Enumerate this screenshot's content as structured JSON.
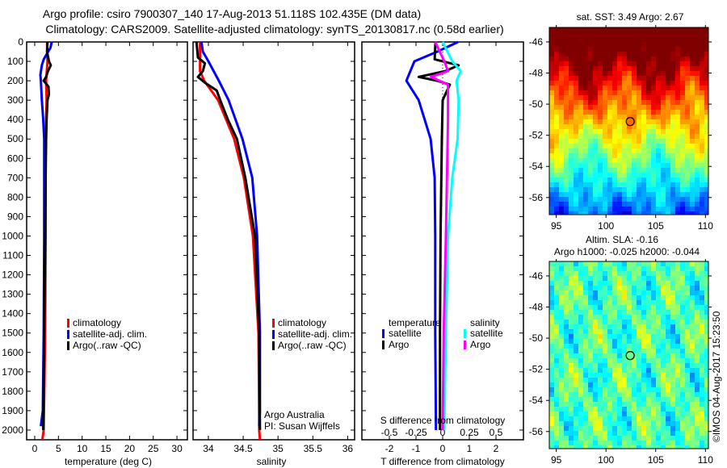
{
  "title": {
    "line1": "Argo profile: csiro 7900307_140 17-Aug-2013 51.118S 102.435E (DM data)",
    "line2": "Climatology: CARS2009. Satellite-adjusted climatology: synTS_20130817.nc (0.58d earlier)"
  },
  "colors": {
    "climatology": "#ff0000",
    "satellite": "#0000ff",
    "argo": "#000000",
    "s_satellite": "#00ffff",
    "s_argo": "#ff00ff"
  },
  "chart_data": [
    {
      "type": "line",
      "name": "temperature-profile",
      "xlabel": "temperature (deg C)",
      "ylabel": "",
      "xlim": [
        -1.7,
        32.2
      ],
      "ylim": [
        2050,
        0
      ],
      "xticks": [
        "0",
        "5",
        "10",
        "15",
        "20",
        "25",
        "30"
      ],
      "yticks": [
        "0",
        "100",
        "200",
        "300",
        "400",
        "500",
        "600",
        "700",
        "800",
        "900",
        "1000",
        "1100",
        "1200",
        "1300",
        "1400",
        "1500",
        "1600",
        "1700",
        "1800",
        "1900",
        "2000"
      ],
      "legend": [
        "climatology",
        "satellite-adj. clim.",
        "Argo(..raw -QC)"
      ],
      "series": [
        {
          "name": "climatology",
          "color": "#ff0000",
          "depth": [
            0,
            100,
            200,
            300,
            500,
            1000,
            1500,
            2000,
            2050
          ],
          "values": [
            2.6,
            2.7,
            2.4,
            2.5,
            2.3,
            2.3,
            2.2,
            1.9,
            1.6
          ]
        },
        {
          "name": "satellite-adj. clim.",
          "color": "#0000ff",
          "depth": [
            0,
            30,
            60,
            90,
            120,
            170,
            200,
            300,
            400,
            500,
            1000,
            1500,
            1900,
            1980
          ],
          "values": [
            3.6,
            3.3,
            2.6,
            1.9,
            1.5,
            1.2,
            1.3,
            1.5,
            1.8,
            2.0,
            2.0,
            1.9,
            1.7,
            1.3
          ]
        },
        {
          "name": "Argo(..raw -QC)",
          "color": "#000000",
          "depth": [
            0,
            50,
            100,
            120,
            150,
            180,
            200,
            230,
            270,
            300,
            400,
            500,
            700,
            1000,
            1500,
            2000
          ],
          "values": [
            2.7,
            2.6,
            3.0,
            3.4,
            2.8,
            2.4,
            1.9,
            2.9,
            3.0,
            2.7,
            2.5,
            2.4,
            2.3,
            2.2,
            2.0,
            1.8
          ]
        }
      ]
    },
    {
      "type": "line",
      "name": "salinity-profile",
      "xlabel": "salinity",
      "xlim": [
        33.78,
        36.1
      ],
      "ylim": [
        2050,
        0
      ],
      "xticks": [
        "34",
        "34.5",
        "35",
        "35.5",
        "36"
      ],
      "legend": [
        "climatology",
        "satellite-adj. clim.",
        "Argo(..raw -QC)"
      ],
      "annotation": [
        "Argo Australia",
        "PI: Susan Wijffels"
      ],
      "series": [
        {
          "name": "climatology",
          "color": "#ff0000",
          "depth": [
            0,
            150,
            200,
            300,
            500,
            700,
            1000,
            1500,
            2000,
            2050
          ],
          "values": [
            33.88,
            33.88,
            33.94,
            34.14,
            34.37,
            34.51,
            34.64,
            34.72,
            34.73,
            34.74
          ]
        },
        {
          "name": "satellite-adj. clim.",
          "color": "#0000ff",
          "depth": [
            0,
            50,
            100,
            200,
            300,
            500,
            700,
            1000,
            1500,
            1900,
            1980
          ],
          "values": [
            33.9,
            33.92,
            34.0,
            34.15,
            34.29,
            34.49,
            34.63,
            34.7,
            34.74,
            34.74,
            34.73
          ]
        },
        {
          "name": "Argo(..raw -QC)",
          "color": "#000000",
          "depth": [
            0,
            80,
            110,
            150,
            180,
            210,
            250,
            300,
            400,
            500,
            700,
            1000,
            1500,
            2000
          ],
          "values": [
            33.83,
            33.85,
            33.95,
            33.92,
            33.85,
            33.95,
            34.12,
            34.17,
            34.28,
            34.41,
            34.53,
            34.67,
            34.73,
            34.74
          ]
        }
      ]
    },
    {
      "type": "line",
      "name": "difference-profile",
      "xlabel": "T difference from climatology",
      "xlabel2": "S difference from climatology",
      "xlim": [
        -3.03,
        3.03
      ],
      "xticks": [
        "-2",
        "-1",
        "0",
        "1",
        "2"
      ],
      "xticks2": [
        "-0.5",
        "-0.25",
        "0",
        "0.25",
        "0.5"
      ],
      "legend_temperature": {
        "title": "temperature",
        "items": [
          "satellite",
          "Argo"
        ]
      },
      "legend_salinity": {
        "title": "salinity",
        "items": [
          "satellite",
          "Argo"
        ]
      },
      "series": [
        {
          "name": "T satellite",
          "quantity": "T",
          "color": "#0000ff",
          "depth": [
            0,
            50,
            100,
            200,
            300,
            500,
            700,
            1000,
            1500,
            2000
          ],
          "values": [
            0.58,
            -0.2,
            -1.06,
            -1.36,
            -0.9,
            -0.45,
            -0.3,
            -0.28,
            -0.28,
            -0.25
          ]
        },
        {
          "name": "T Argo",
          "quantity": "T",
          "color": "#000000",
          "depth": [
            0,
            90,
            120,
            150,
            180,
            200,
            220,
            300,
            500,
            1000,
            1500,
            2000
          ],
          "values": [
            -0.27,
            -0.3,
            0.6,
            0.1,
            -0.9,
            -0.2,
            0.27,
            0.0,
            -0.03,
            -0.08,
            -0.1,
            -0.1
          ]
        },
        {
          "name": "S satellite",
          "quantity": "S",
          "color": "#00ffff",
          "depth": [
            0,
            100,
            150,
            200,
            300,
            500,
            700,
            1000,
            1500,
            2000
          ],
          "values": [
            0.0,
            0.09,
            0.17,
            0.13,
            0.15,
            0.14,
            0.09,
            0.05,
            0.03,
            0.015
          ]
        },
        {
          "name": "S Argo",
          "quantity": "S",
          "color": "#ff00ff",
          "depth": [
            0,
            100,
            150,
            180,
            220,
            400,
            700,
            1000,
            1500,
            2000
          ],
          "values": [
            -0.07,
            0.015,
            0.05,
            -0.11,
            0.05,
            0.05,
            0.04,
            0.03,
            0.01,
            0.0
          ]
        }
      ]
    },
    {
      "type": "heatmap",
      "name": "sst-map",
      "title": "sat. SST: 3.49 Argo: 2.67",
      "xlim": [
        94.3,
        110.3
      ],
      "ylim": [
        -45.07,
        -57.1
      ],
      "xticks": [
        "95",
        "100",
        "105",
        "110"
      ],
      "yticks": [
        "-46",
        "-48",
        "-50",
        "-52",
        "-54",
        "-56"
      ],
      "marker": {
        "lon": 102.435,
        "lat": -51.118
      }
    },
    {
      "type": "heatmap",
      "name": "sla-map",
      "title": "Altim. SLA: -0.16",
      "subtitle": "Argo h1000: -0.025 h2000: -0.044",
      "xlim": [
        94.3,
        110.3
      ],
      "ylim": [
        -45.07,
        -57.1
      ],
      "xticks": [
        "95",
        "100",
        "105",
        "110"
      ],
      "yticks": [
        "-46",
        "-48",
        "-50",
        "-52",
        "-54",
        "-56"
      ],
      "marker": {
        "lon": 102.435,
        "lat": -51.118
      }
    }
  ],
  "copyright": "©IMOS 04-Aug-2017 15:23:50"
}
